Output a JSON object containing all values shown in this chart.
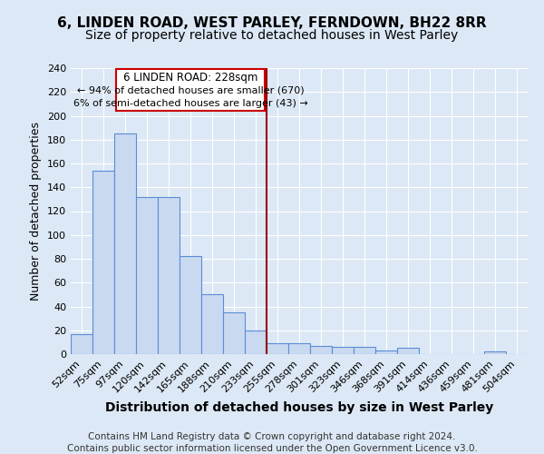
{
  "title": "6, LINDEN ROAD, WEST PARLEY, FERNDOWN, BH22 8RR",
  "subtitle": "Size of property relative to detached houses in West Parley",
  "xlabel": "Distribution of detached houses by size in West Parley",
  "ylabel": "Number of detached properties",
  "footer1": "Contains HM Land Registry data © Crown copyright and database right 2024.",
  "footer2": "Contains public sector information licensed under the Open Government Licence v3.0.",
  "categories": [
    "52sqm",
    "75sqm",
    "97sqm",
    "120sqm",
    "142sqm",
    "165sqm",
    "188sqm",
    "210sqm",
    "233sqm",
    "255sqm",
    "278sqm",
    "301sqm",
    "323sqm",
    "346sqm",
    "368sqm",
    "391sqm",
    "414sqm",
    "436sqm",
    "459sqm",
    "481sqm",
    "504sqm"
  ],
  "values": [
    17,
    154,
    185,
    132,
    132,
    82,
    50,
    35,
    20,
    9,
    9,
    7,
    6,
    6,
    3,
    5,
    0,
    0,
    0,
    2,
    0
  ],
  "bar_color": "#c9d9f0",
  "bar_edge_color": "#5b8dd4",
  "ref_line_color": "#990000",
  "ref_line_label": "6 LINDEN ROAD: 228sqm",
  "annotation_line1": "← 94% of detached houses are smaller (670)",
  "annotation_line2": "6% of semi-detached houses are larger (43) →",
  "annotation_box_color": "#ffffff",
  "annotation_box_edge": "#cc0000",
  "ylim": [
    0,
    240
  ],
  "yticks": [
    0,
    20,
    40,
    60,
    80,
    100,
    120,
    140,
    160,
    180,
    200,
    220,
    240
  ],
  "bg_color": "#dce8f5",
  "plot_bg_color": "#dce8f5",
  "grid_color": "#ffffff",
  "title_fontsize": 11,
  "subtitle_fontsize": 10,
  "xlabel_fontsize": 10,
  "ylabel_fontsize": 9,
  "tick_fontsize": 8,
  "footer_fontsize": 7.5
}
